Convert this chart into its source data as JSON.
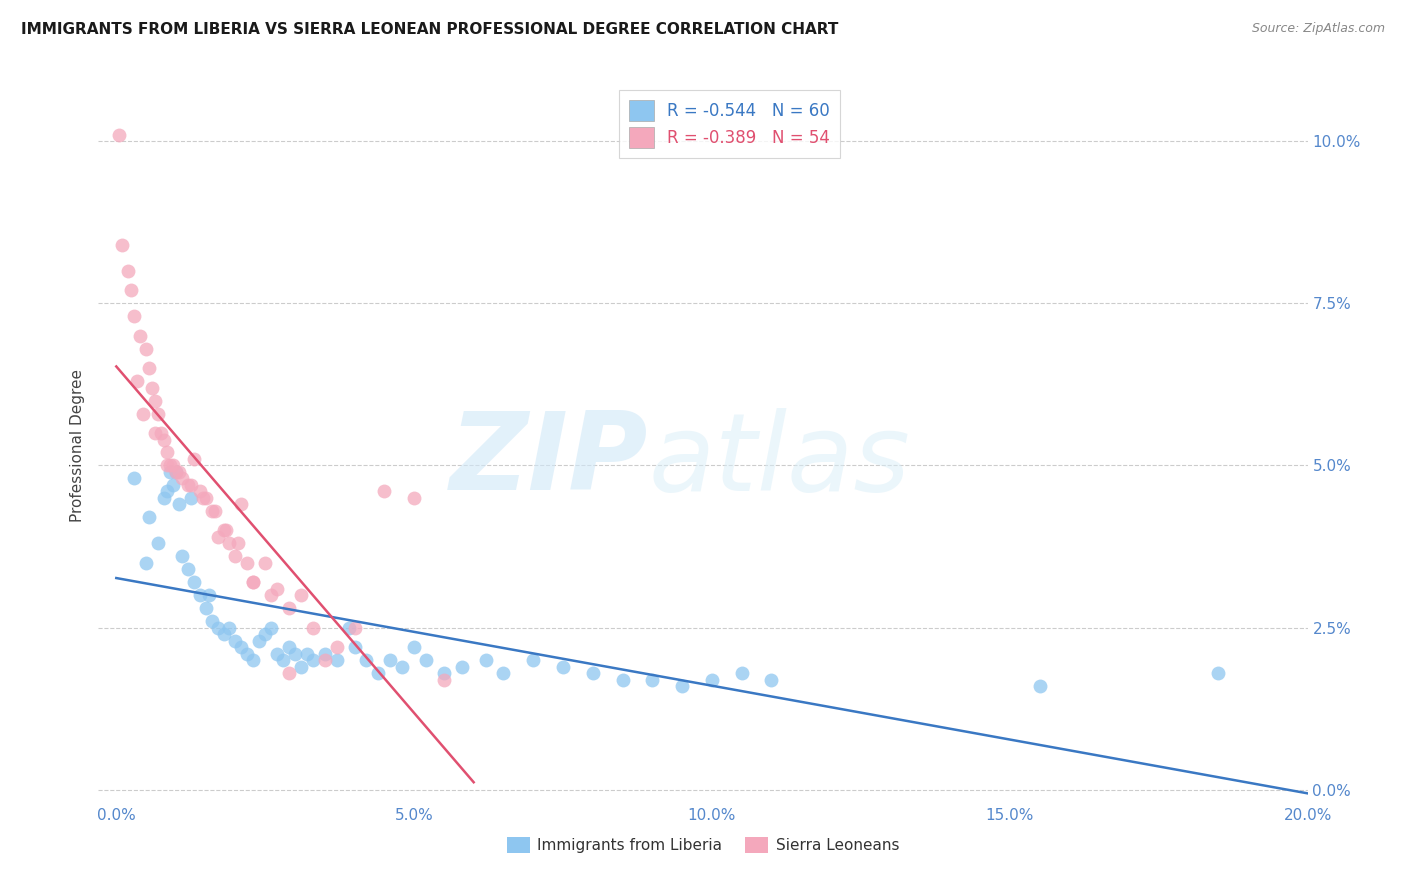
{
  "title": "IMMIGRANTS FROM LIBERIA VS SIERRA LEONEAN PROFESSIONAL DEGREE CORRELATION CHART",
  "source": "Source: ZipAtlas.com",
  "ylabel": "Professional Degree",
  "ytick_values": [
    0.0,
    2.5,
    5.0,
    7.5,
    10.0
  ],
  "xtick_values": [
    0.0,
    5.0,
    10.0,
    15.0,
    20.0
  ],
  "xlim": [
    -0.3,
    20.0
  ],
  "ylim": [
    -0.2,
    10.8
  ],
  "legend_blue_r": "R = -0.544",
  "legend_blue_n": "N = 60",
  "legend_pink_r": "R = -0.389",
  "legend_pink_n": "N = 54",
  "blue_color": "#8EC6F0",
  "pink_color": "#F4A8BC",
  "blue_line_color": "#3A78C3",
  "pink_line_color": "#E05070",
  "blue_scatter_x": [
    0.3,
    0.5,
    0.55,
    0.7,
    0.8,
    0.85,
    0.9,
    0.95,
    1.0,
    1.05,
    1.1,
    1.2,
    1.25,
    1.3,
    1.4,
    1.5,
    1.55,
    1.6,
    1.7,
    1.8,
    1.9,
    2.0,
    2.1,
    2.2,
    2.3,
    2.4,
    2.5,
    2.6,
    2.7,
    2.8,
    2.9,
    3.0,
    3.1,
    3.2,
    3.3,
    3.5,
    3.7,
    3.9,
    4.0,
    4.2,
    4.4,
    4.6,
    4.8,
    5.0,
    5.2,
    5.5,
    5.8,
    6.2,
    6.5,
    7.0,
    7.5,
    8.0,
    8.5,
    9.0,
    9.5,
    10.0,
    10.5,
    11.0,
    15.5,
    18.5
  ],
  "blue_scatter_y": [
    4.8,
    3.5,
    4.2,
    3.8,
    4.5,
    4.6,
    4.9,
    4.7,
    4.9,
    4.4,
    3.6,
    3.4,
    4.5,
    3.2,
    3.0,
    2.8,
    3.0,
    2.6,
    2.5,
    2.4,
    2.5,
    2.3,
    2.2,
    2.1,
    2.0,
    2.3,
    2.4,
    2.5,
    2.1,
    2.0,
    2.2,
    2.1,
    1.9,
    2.1,
    2.0,
    2.1,
    2.0,
    2.5,
    2.2,
    2.0,
    1.8,
    2.0,
    1.9,
    2.2,
    2.0,
    1.8,
    1.9,
    2.0,
    1.8,
    2.0,
    1.9,
    1.8,
    1.7,
    1.7,
    1.6,
    1.7,
    1.8,
    1.7,
    1.6,
    1.8
  ],
  "pink_scatter_x": [
    0.05,
    0.1,
    0.2,
    0.25,
    0.3,
    0.4,
    0.5,
    0.55,
    0.6,
    0.65,
    0.7,
    0.75,
    0.8,
    0.85,
    0.9,
    0.95,
    1.0,
    1.1,
    1.2,
    1.3,
    1.4,
    1.5,
    1.6,
    1.7,
    1.8,
    1.9,
    2.0,
    2.1,
    2.2,
    2.3,
    2.5,
    2.7,
    2.9,
    3.1,
    3.3,
    3.5,
    3.7,
    4.0,
    4.5,
    5.5,
    0.35,
    0.45,
    0.65,
    0.85,
    1.05,
    1.25,
    1.45,
    1.65,
    1.85,
    2.05,
    2.3,
    2.6,
    2.9,
    5.0
  ],
  "pink_scatter_y": [
    10.1,
    8.4,
    8.0,
    7.7,
    7.3,
    7.0,
    6.8,
    6.5,
    6.2,
    6.0,
    5.8,
    5.5,
    5.4,
    5.2,
    5.0,
    5.0,
    4.9,
    4.8,
    4.7,
    5.1,
    4.6,
    4.5,
    4.3,
    3.9,
    4.0,
    3.8,
    3.6,
    4.4,
    3.5,
    3.2,
    3.5,
    3.1,
    2.8,
    3.0,
    2.5,
    2.0,
    2.2,
    2.5,
    4.6,
    1.7,
    6.3,
    5.8,
    5.5,
    5.0,
    4.9,
    4.7,
    4.5,
    4.3,
    4.0,
    3.8,
    3.2,
    3.0,
    1.8,
    4.5
  ]
}
